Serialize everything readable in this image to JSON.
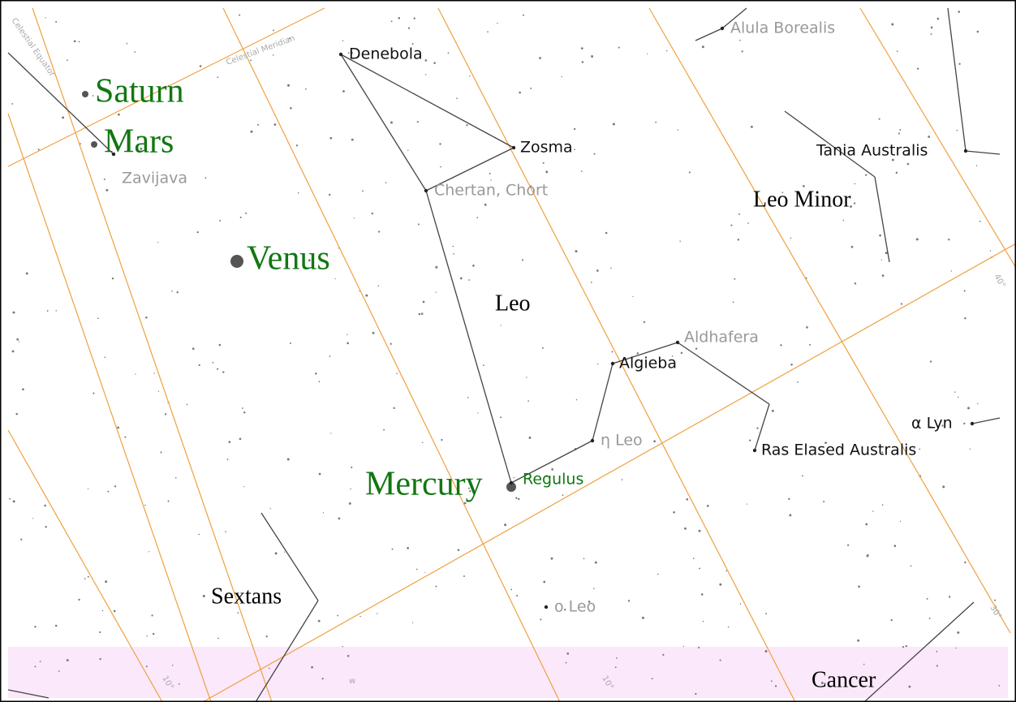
{
  "planets": [
    {
      "label": "Saturn"
    },
    {
      "label": "Mars"
    },
    {
      "label": "Venus"
    },
    {
      "label": "Mercury"
    }
  ],
  "stars": [
    {
      "label": "Alula Borealis",
      "faint": true
    },
    {
      "label": "Denebola",
      "faint": false
    },
    {
      "label": "Zavijava",
      "faint": true
    },
    {
      "label": "Zosma",
      "faint": false
    },
    {
      "label": "Chertan, Chort",
      "faint": true
    },
    {
      "label": "Tania Australis",
      "faint": false
    },
    {
      "label": "Aldhafera",
      "faint": true
    },
    {
      "label": "Algieba",
      "faint": false
    },
    {
      "label": "α Lyn",
      "faint": false
    },
    {
      "label": "η Leo",
      "faint": true
    },
    {
      "label": "Ras Elased Australis",
      "faint": false
    },
    {
      "label": "Regulus",
      "faint": false
    },
    {
      "label": "ο Leo",
      "faint": true
    }
  ],
  "constellations": [
    {
      "label": "Leo Minor"
    },
    {
      "label": "Leo"
    },
    {
      "label": "Sextans"
    },
    {
      "label": "Cancer"
    }
  ],
  "grid_labels": [
    {
      "label": "Celestial Equator"
    },
    {
      "label": "Celestial Meridian"
    },
    {
      "label": "40°"
    },
    {
      "label": "30°"
    },
    {
      "label": "10°"
    },
    {
      "label": "10°"
    },
    {
      "label": "w"
    }
  ]
}
